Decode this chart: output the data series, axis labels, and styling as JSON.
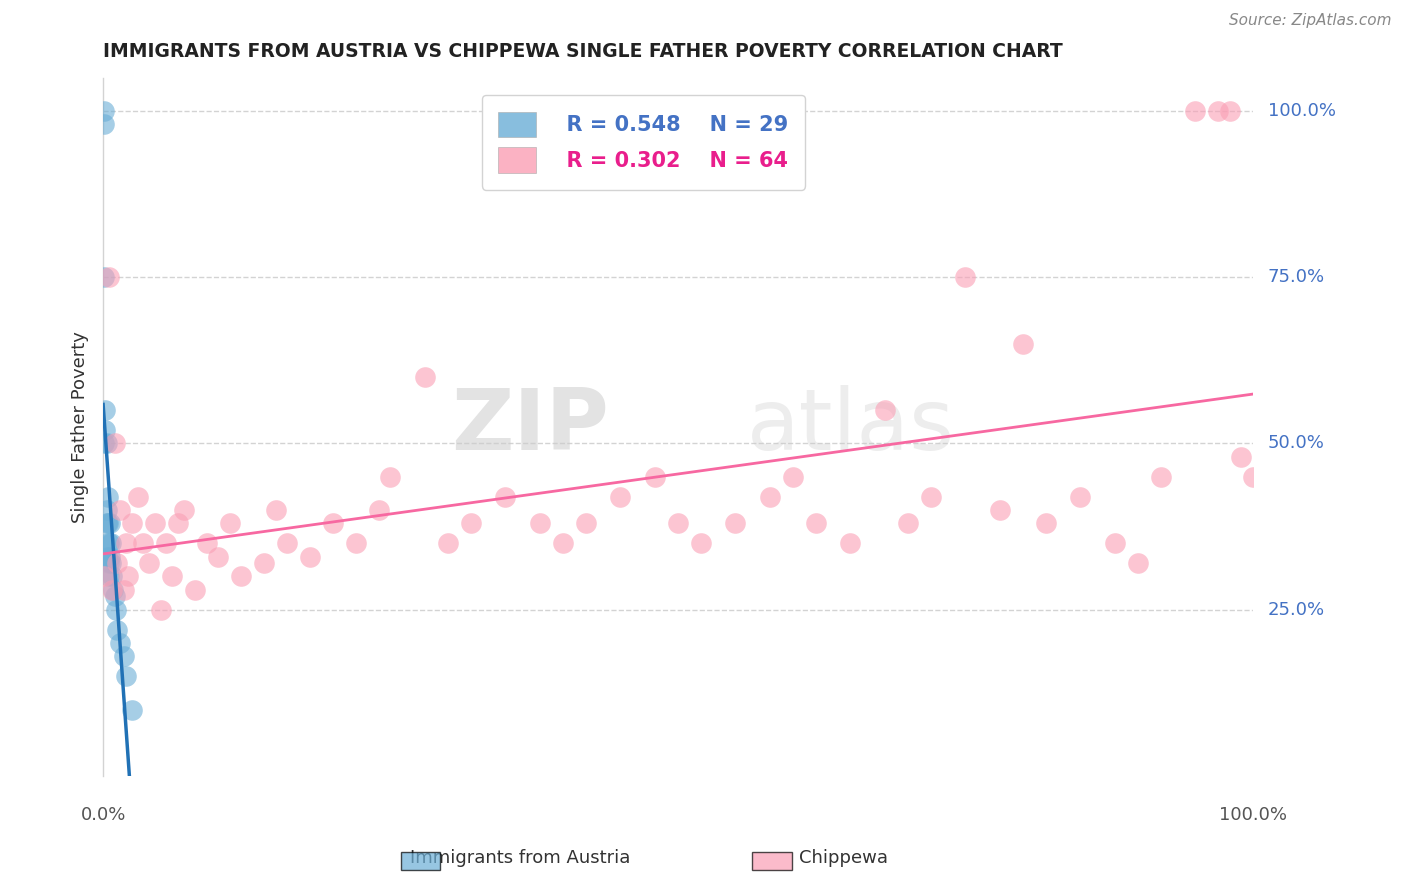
{
  "title": "IMMIGRANTS FROM AUSTRIA VS CHIPPEWA SINGLE FATHER POVERTY CORRELATION CHART",
  "source": "Source: ZipAtlas.com",
  "ylabel": "Single Father Poverty",
  "legend_label1": "Immigrants from Austria",
  "legend_label2": "Chippewa",
  "legend_R1": "R = 0.548",
  "legend_N1": "N = 29",
  "legend_R2": "R = 0.302",
  "legend_N2": "N = 64",
  "blue_color": "#6baed6",
  "pink_color": "#fa9fb5",
  "blue_line_color": "#2171b5",
  "pink_line_color": "#f768a1",
  "watermark_zip": "ZIP",
  "watermark_atlas": "atlas",
  "austria_x": [
    0.0005,
    0.0005,
    0.001,
    0.001,
    0.002,
    0.002,
    0.002,
    0.003,
    0.003,
    0.003,
    0.003,
    0.004,
    0.004,
    0.005,
    0.005,
    0.005,
    0.006,
    0.006,
    0.007,
    0.007,
    0.008,
    0.009,
    0.01,
    0.011,
    0.012,
    0.015,
    0.018,
    0.02,
    0.025
  ],
  "austria_y": [
    1.0,
    0.98,
    0.75,
    0.5,
    0.55,
    0.52,
    0.35,
    0.5,
    0.4,
    0.38,
    0.33,
    0.42,
    0.38,
    0.35,
    0.32,
    0.3,
    0.38,
    0.33,
    0.35,
    0.32,
    0.3,
    0.28,
    0.27,
    0.25,
    0.22,
    0.2,
    0.18,
    0.15,
    0.1
  ],
  "chippewa_x": [
    0.001,
    0.005,
    0.008,
    0.01,
    0.012,
    0.015,
    0.018,
    0.02,
    0.022,
    0.025,
    0.03,
    0.035,
    0.04,
    0.045,
    0.05,
    0.055,
    0.06,
    0.065,
    0.07,
    0.08,
    0.09,
    0.1,
    0.11,
    0.12,
    0.14,
    0.15,
    0.16,
    0.18,
    0.2,
    0.22,
    0.24,
    0.25,
    0.28,
    0.3,
    0.32,
    0.35,
    0.38,
    0.4,
    0.42,
    0.45,
    0.48,
    0.5,
    0.52,
    0.55,
    0.58,
    0.6,
    0.62,
    0.65,
    0.68,
    0.7,
    0.72,
    0.75,
    0.78,
    0.8,
    0.82,
    0.85,
    0.88,
    0.9,
    0.92,
    0.95,
    0.97,
    0.98,
    0.99,
    1.0
  ],
  "chippewa_y": [
    0.3,
    0.75,
    0.28,
    0.5,
    0.32,
    0.4,
    0.28,
    0.35,
    0.3,
    0.38,
    0.42,
    0.35,
    0.32,
    0.38,
    0.25,
    0.35,
    0.3,
    0.38,
    0.4,
    0.28,
    0.35,
    0.33,
    0.38,
    0.3,
    0.32,
    0.4,
    0.35,
    0.33,
    0.38,
    0.35,
    0.4,
    0.45,
    0.6,
    0.35,
    0.38,
    0.42,
    0.38,
    0.35,
    0.38,
    0.42,
    0.45,
    0.38,
    0.35,
    0.38,
    0.42,
    0.45,
    0.38,
    0.35,
    0.55,
    0.38,
    0.42,
    0.75,
    0.4,
    0.65,
    0.38,
    0.42,
    0.35,
    0.32,
    0.45,
    1.0,
    1.0,
    1.0,
    0.48,
    0.45
  ],
  "ytick_vals": [
    0.25,
    0.5,
    0.75,
    1.0
  ],
  "ytick_labels": [
    "25.0%",
    "50.0%",
    "75.0%",
    "100.0%"
  ]
}
